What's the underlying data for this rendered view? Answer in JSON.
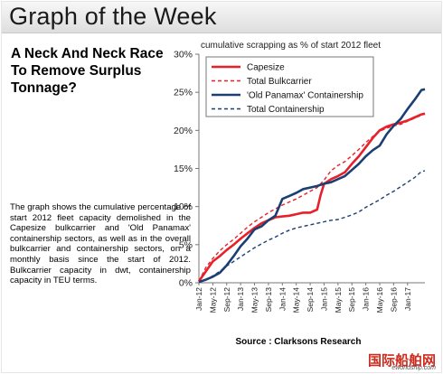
{
  "header": {
    "title": "Graph of the Week"
  },
  "headline": "A Neck And Neck Race To Remove Surplus Tonnage?",
  "description": "The graph shows the cumulative percentage of start 2012 fleet capacity demolished in the Capesize bulkcarrier and 'Old Panamax' containership sectors, as well as in the overall bulkcarrier and containership sectors, on a monthly basis since the start of 2012. Bulkcarrier capacity in dwt, containership capacity in TEU terms.",
  "source": "Source : Clarksons Research",
  "watermark": {
    "cn": "国际船舶网",
    "en": "eworldship.com"
  },
  "chart_data": {
    "type": "line",
    "title": "cumulative scrapping as % of start 2012 fleet",
    "ylim": [
      0,
      30
    ],
    "yticks": [
      "0%",
      "5%",
      "10%",
      "15%",
      "20%",
      "25%",
      "30%"
    ],
    "xticks": [
      "Jan-12",
      "May-12",
      "Sep-12",
      "Jan-13",
      "May-13",
      "Sep-13",
      "Jan-14",
      "May-14",
      "Sep-14",
      "Jan-15",
      "May-15",
      "Sep-15",
      "Jan-16",
      "May-16",
      "Sep-16",
      "Jan-17"
    ],
    "x_start": "Jan-12",
    "x_end": "Jun-17",
    "legend_position": "top-left",
    "series": [
      {
        "name": "Capesize",
        "color": "#e8202a",
        "dash": false,
        "points": [
          [
            0,
            0.2
          ],
          [
            2,
            1.5
          ],
          [
            4,
            2.8
          ],
          [
            6,
            3.5
          ],
          [
            8,
            4.3
          ],
          [
            10,
            5.0
          ],
          [
            12,
            5.8
          ],
          [
            14,
            6.5
          ],
          [
            16,
            7.2
          ],
          [
            18,
            7.8
          ],
          [
            20,
            8.2
          ],
          [
            22,
            8.6
          ],
          [
            24,
            8.7
          ],
          [
            26,
            8.8
          ],
          [
            28,
            9.0
          ],
          [
            30,
            9.2
          ],
          [
            32,
            9.2
          ],
          [
            34,
            9.6
          ],
          [
            35,
            11.5
          ],
          [
            36,
            13.0
          ],
          [
            38,
            13.6
          ],
          [
            40,
            14.0
          ],
          [
            42,
            14.5
          ],
          [
            44,
            15.6
          ],
          [
            46,
            16.6
          ],
          [
            48,
            17.8
          ],
          [
            50,
            19.0
          ],
          [
            52,
            20.0
          ],
          [
            54,
            20.5
          ],
          [
            56,
            20.8
          ],
          [
            58,
            21.0
          ],
          [
            60,
            21.3
          ],
          [
            62,
            21.7
          ],
          [
            64,
            22.1
          ],
          [
            65,
            22.2
          ]
        ]
      },
      {
        "name": "Total Bulkcarrier",
        "color": "#e8202a",
        "dash": true,
        "points": [
          [
            0,
            0.2
          ],
          [
            2,
            2.0
          ],
          [
            4,
            3.2
          ],
          [
            6,
            4.2
          ],
          [
            8,
            5.0
          ],
          [
            10,
            5.7
          ],
          [
            12,
            6.5
          ],
          [
            14,
            7.3
          ],
          [
            16,
            8.0
          ],
          [
            18,
            8.6
          ],
          [
            20,
            9.2
          ],
          [
            22,
            9.7
          ],
          [
            24,
            10.2
          ],
          [
            26,
            10.6
          ],
          [
            28,
            11.0
          ],
          [
            30,
            11.5
          ],
          [
            32,
            12.0
          ],
          [
            34,
            12.5
          ],
          [
            36,
            13.5
          ],
          [
            38,
            14.7
          ],
          [
            40,
            15.4
          ],
          [
            42,
            15.9
          ],
          [
            44,
            16.7
          ],
          [
            46,
            17.5
          ],
          [
            48,
            18.4
          ],
          [
            50,
            19.2
          ],
          [
            52,
            19.9
          ],
          [
            54,
            20.3
          ],
          [
            56,
            20.6
          ],
          [
            58,
            20.8
          ],
          [
            60,
            21.2
          ],
          [
            62,
            21.6
          ],
          [
            64,
            22.0
          ],
          [
            65,
            22.2
          ]
        ]
      },
      {
        "name": "'Old Panamax' Containership",
        "color": "#1c3f73",
        "dash": false,
        "points": [
          [
            0,
            0.1
          ],
          [
            2,
            0.4
          ],
          [
            4,
            0.8
          ],
          [
            6,
            1.3
          ],
          [
            8,
            2.3
          ],
          [
            10,
            3.5
          ],
          [
            12,
            4.8
          ],
          [
            14,
            5.8
          ],
          [
            16,
            7.0
          ],
          [
            18,
            7.4
          ],
          [
            20,
            8.2
          ],
          [
            22,
            8.8
          ],
          [
            24,
            11.0
          ],
          [
            26,
            11.4
          ],
          [
            28,
            11.8
          ],
          [
            30,
            12.3
          ],
          [
            32,
            12.5
          ],
          [
            34,
            12.7
          ],
          [
            36,
            13.0
          ],
          [
            38,
            13.2
          ],
          [
            40,
            13.6
          ],
          [
            42,
            14.0
          ],
          [
            44,
            14.8
          ],
          [
            46,
            15.6
          ],
          [
            48,
            16.6
          ],
          [
            50,
            17.4
          ],
          [
            52,
            18.0
          ],
          [
            54,
            19.5
          ],
          [
            56,
            20.6
          ],
          [
            58,
            21.5
          ],
          [
            60,
            22.8
          ],
          [
            62,
            24.0
          ],
          [
            64,
            25.3
          ],
          [
            65,
            25.4
          ]
        ]
      },
      {
        "name": "Total Containership",
        "color": "#1c3f73",
        "dash": true,
        "points": [
          [
            0,
            0.1
          ],
          [
            2,
            0.4
          ],
          [
            4,
            0.9
          ],
          [
            6,
            1.5
          ],
          [
            8,
            2.2
          ],
          [
            10,
            2.8
          ],
          [
            12,
            3.4
          ],
          [
            14,
            4.0
          ],
          [
            16,
            4.6
          ],
          [
            18,
            5.1
          ],
          [
            20,
            5.6
          ],
          [
            22,
            6.0
          ],
          [
            24,
            6.5
          ],
          [
            26,
            6.9
          ],
          [
            28,
            7.2
          ],
          [
            30,
            7.4
          ],
          [
            32,
            7.6
          ],
          [
            34,
            7.8
          ],
          [
            36,
            8.0
          ],
          [
            38,
            8.2
          ],
          [
            40,
            8.3
          ],
          [
            42,
            8.6
          ],
          [
            44,
            8.9
          ],
          [
            46,
            9.3
          ],
          [
            48,
            9.9
          ],
          [
            50,
            10.4
          ],
          [
            52,
            10.9
          ],
          [
            54,
            11.5
          ],
          [
            56,
            12.0
          ],
          [
            58,
            12.6
          ],
          [
            60,
            13.2
          ],
          [
            62,
            13.8
          ],
          [
            64,
            14.6
          ],
          [
            65,
            14.7
          ]
        ]
      }
    ]
  }
}
